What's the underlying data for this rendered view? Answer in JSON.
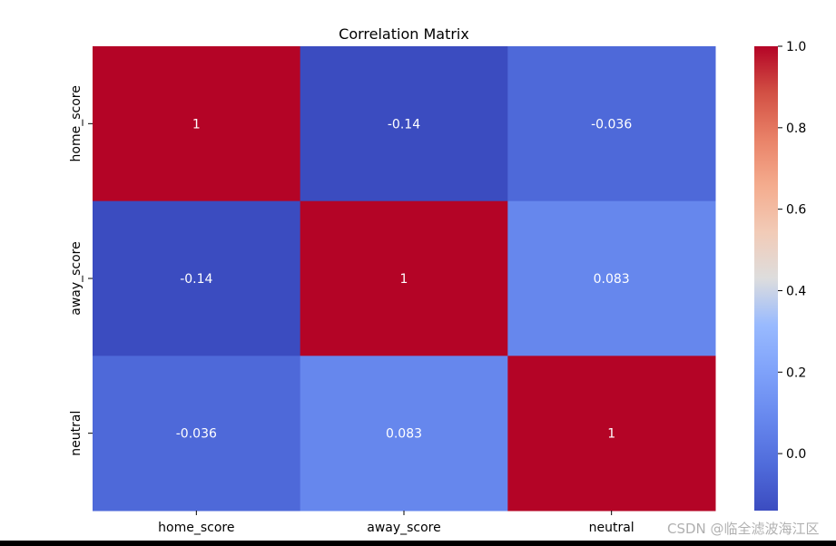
{
  "chart_data": {
    "type": "heatmap",
    "title": "Correlation Matrix",
    "rows": [
      "home_score",
      "away_score",
      "neutral"
    ],
    "columns": [
      "home_score",
      "away_score",
      "neutral"
    ],
    "values": [
      [
        1,
        -0.14,
        -0.036
      ],
      [
        -0.14,
        1,
        0.083
      ],
      [
        -0.036,
        0.083,
        1
      ]
    ],
    "cell_labels": [
      [
        "1",
        "-0.14",
        "-0.036"
      ],
      [
        "-0.14",
        "1",
        "0.083"
      ],
      [
        "-0.036",
        "0.083",
        "1"
      ]
    ],
    "colormap": "coolwarm",
    "vmin": -0.14,
    "vmax": 1.0,
    "colorbar_ticks": [
      1.0,
      0.8,
      0.6,
      0.4,
      0.2,
      0.0
    ],
    "colorbar_tick_labels": [
      "1.0",
      "0.8",
      "0.6",
      "0.4",
      "0.2",
      "0.0"
    ]
  },
  "watermark": "CSDN @临全滤波海江区"
}
